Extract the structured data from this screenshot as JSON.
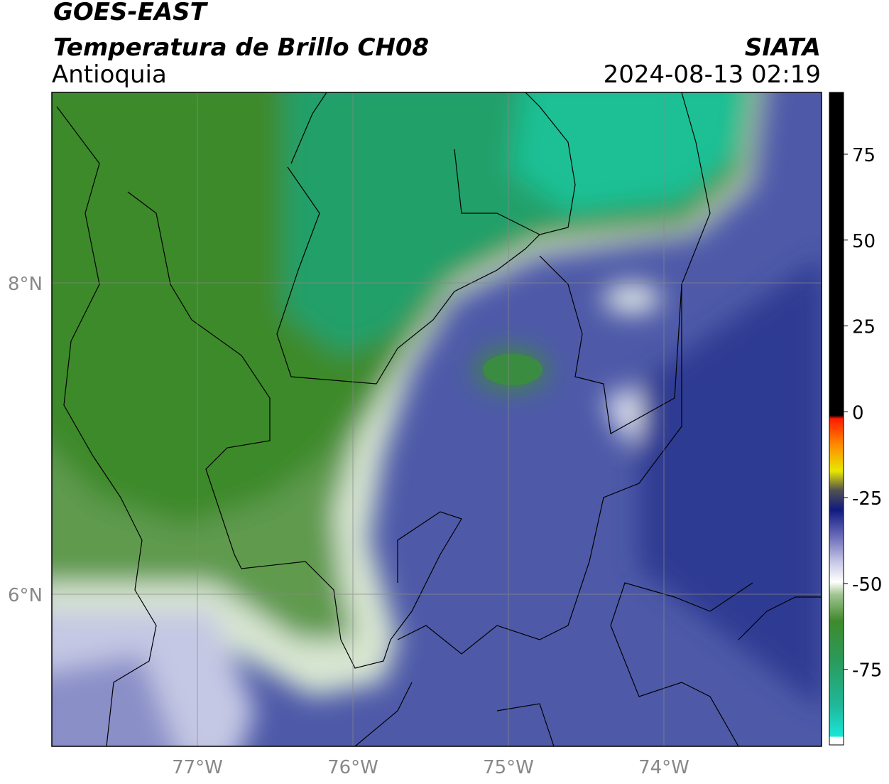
{
  "header": {
    "source": "GOES-EAST",
    "product": "Temperatura de Brillo CH08",
    "region": "Antioquia",
    "agency": "SIATA",
    "datetime": "2024-08-13 02:19"
  },
  "map": {
    "lon_labels": [
      "77°W",
      "76°W",
      "75°W",
      "74°W"
    ],
    "lat_labels": [
      "8°N",
      "6°N"
    ]
  },
  "colorbar": {
    "ticks": [
      75,
      50,
      25,
      0,
      -25,
      -50,
      -75
    ],
    "lim": [
      -97,
      93
    ]
  }
}
